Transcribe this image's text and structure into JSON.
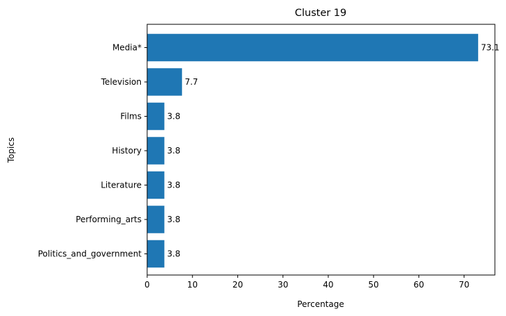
{
  "chart_data": {
    "type": "bar",
    "orientation": "horizontal",
    "title": "Cluster 19",
    "xlabel": "Percentage",
    "ylabel": "Topics",
    "categories": [
      "Media*",
      "Television",
      "Films",
      "History",
      "Literature",
      "Performing_arts",
      "Politics_and_government"
    ],
    "values": [
      73.1,
      7.7,
      3.8,
      3.8,
      3.8,
      3.8,
      3.8
    ],
    "data_labels": [
      "73.1",
      "7.7",
      "3.8",
      "3.8",
      "3.8",
      "3.8",
      "3.8"
    ],
    "xlim": [
      0,
      76.8
    ],
    "xticks": [
      0,
      10,
      20,
      30,
      40,
      50,
      60,
      70
    ],
    "xtick_labels": [
      "0",
      "10",
      "20",
      "30",
      "40",
      "50",
      "60",
      "70"
    ],
    "grid": false,
    "bar_color": "#1f77b4"
  }
}
